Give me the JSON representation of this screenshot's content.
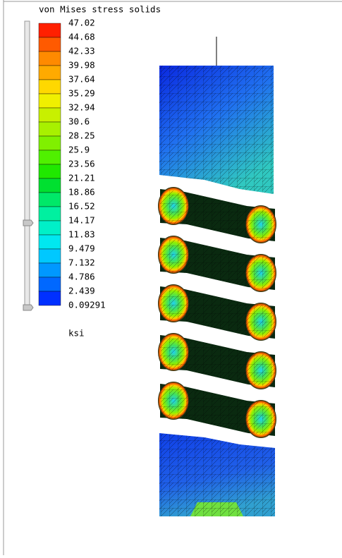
{
  "title": "von Mises stress solids",
  "legend": {
    "labels": [
      "47.02",
      "44.68",
      "42.33",
      "39.98",
      "37.64",
      "35.29",
      "32.94",
      "30.6",
      "28.25",
      "25.9",
      "23.56",
      "21.21",
      "18.86",
      "16.52",
      "14.17",
      "11.83",
      "9.479",
      "7.132",
      "4.786",
      "2.439",
      "0.09291"
    ],
    "colors": [
      "#ff2000",
      "#ff5a00",
      "#ff8a00",
      "#ffaa00",
      "#ffd800",
      "#f0f000",
      "#c8f000",
      "#a8f000",
      "#80f000",
      "#50f000",
      "#20e800",
      "#00e030",
      "#00e868",
      "#00f0a0",
      "#00f0c8",
      "#00e8f0",
      "#00c8ff",
      "#0098ff",
      "#0068ff",
      "#0030ff"
    ],
    "unit": "ksi"
  }
}
